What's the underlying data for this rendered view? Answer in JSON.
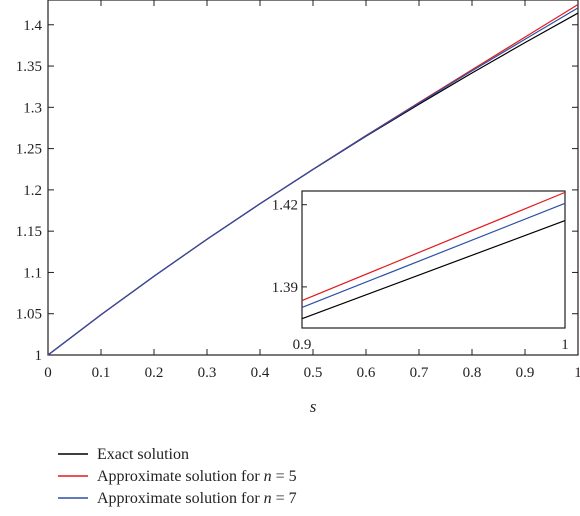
{
  "chart_data": {
    "type": "line",
    "title": "",
    "xlabel": "s",
    "ylabel": "",
    "xlim": [
      0,
      1
    ],
    "ylim": [
      1,
      1.43
    ],
    "x_ticks": [
      "0",
      "0.1",
      "0.2",
      "0.3",
      "0.4",
      "0.5",
      "0.6",
      "0.7",
      "0.8",
      "0.9",
      "1"
    ],
    "y_ticks": [
      "1",
      "1.05",
      "1.1",
      "1.15",
      "1.2",
      "1.25",
      "1.3",
      "1.35",
      "1.4"
    ],
    "grid": false,
    "legend_position": "bottom",
    "series": [
      {
        "name": "Exact solution",
        "color": "#000000",
        "x": [
          0,
          0.1,
          0.2,
          0.3,
          0.4,
          0.5,
          0.6,
          0.7,
          0.8,
          0.9,
          1
        ],
        "y": [
          1,
          1.0488,
          1.0954,
          1.1402,
          1.1832,
          1.2247,
          1.2649,
          1.3038,
          1.3416,
          1.3784,
          1.4142
        ]
      },
      {
        "name": "Approximate solution for n = 5",
        "color": "#e41a1c",
        "x": [
          0,
          0.1,
          0.2,
          0.3,
          0.4,
          0.5,
          0.6,
          0.7,
          0.8,
          0.9,
          1
        ],
        "y": [
          1,
          1.0488,
          1.0954,
          1.1402,
          1.1833,
          1.225,
          1.2658,
          1.3058,
          1.3455,
          1.385,
          1.4245
        ]
      },
      {
        "name": "Approximate solution for n = 7",
        "color": "#2b4fa8",
        "x": [
          0,
          0.1,
          0.2,
          0.3,
          0.4,
          0.5,
          0.6,
          0.7,
          0.8,
          0.9,
          1
        ],
        "y": [
          1,
          1.0488,
          1.0954,
          1.1402,
          1.1832,
          1.2249,
          1.2655,
          1.3051,
          1.3441,
          1.3825,
          1.4205
        ]
      }
    ],
    "inset": {
      "xlim": [
        0.9,
        1
      ],
      "ylim": [
        1.375,
        1.425
      ],
      "x_ticks": [
        "0.9",
        "1"
      ],
      "y_ticks": [
        "1.39",
        "1.42"
      ]
    },
    "legend": [
      {
        "prefix": "Exact solution",
        "n_value": ""
      },
      {
        "prefix": "Approximate solution for ",
        "n_symbol": "n",
        "eq": " = ",
        "n_value": "5"
      },
      {
        "prefix": "Approximate solution for ",
        "n_symbol": "n",
        "eq": " = ",
        "n_value": "7"
      }
    ]
  }
}
